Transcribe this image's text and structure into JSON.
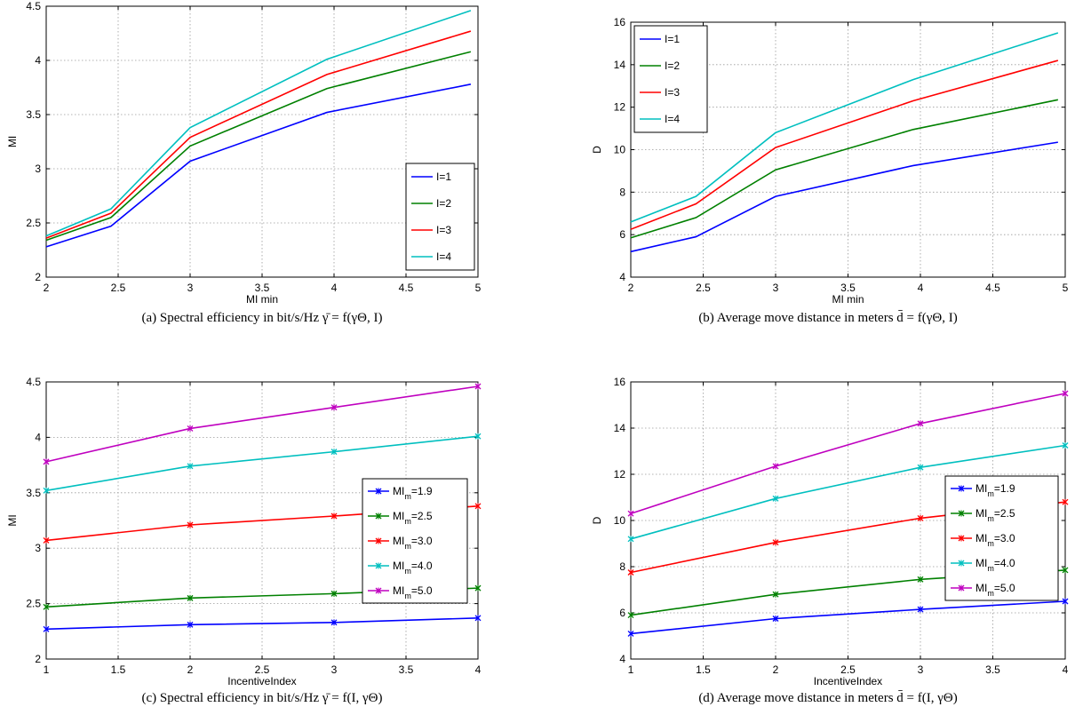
{
  "chart_data": [
    {
      "type": "line",
      "xlabel": "MI  min",
      "ylabel": "MI",
      "xlim": [
        2,
        5
      ],
      "ylim": [
        2,
        4.5
      ],
      "xticks": [
        "2",
        "2.5",
        "3",
        "3.5",
        "4",
        "4.5",
        "5"
      ],
      "yticks": [
        "2",
        "2.5",
        "3",
        "3.5",
        "4",
        "4.5"
      ],
      "grid": true,
      "legend_position": "center-right",
      "markers": false,
      "x": [
        2,
        2.45,
        3,
        3.95,
        4.95
      ],
      "series": [
        {
          "name": "I=1",
          "color": "#0000ff",
          "values": [
            2.28,
            2.47,
            3.07,
            3.52,
            3.78
          ]
        },
        {
          "name": "I=2",
          "color": "#008000",
          "values": [
            2.34,
            2.55,
            3.21,
            3.74,
            4.08
          ]
        },
        {
          "name": "I=3",
          "color": "#ff0000",
          "values": [
            2.36,
            2.59,
            3.29,
            3.87,
            4.27
          ]
        },
        {
          "name": "I=4",
          "color": "#00bfbf",
          "values": [
            2.38,
            2.63,
            3.38,
            4.01,
            4.46
          ]
        }
      ],
      "caption": "(a) Spectral efficiency in bit/s/Hz γ̄ = f(γΘ, I)"
    },
    {
      "type": "line",
      "xlabel": "MI  min",
      "ylabel": "D",
      "xlim": [
        2,
        5
      ],
      "ylim": [
        4,
        16
      ],
      "xticks": [
        "2",
        "2.5",
        "3",
        "3.5",
        "4",
        "4.5",
        "5"
      ],
      "yticks": [
        "4",
        "6",
        "8",
        "10",
        "12",
        "14",
        "16"
      ],
      "grid": true,
      "legend_position": "top-left",
      "markers": false,
      "x": [
        2,
        2.45,
        3,
        3.95,
        4.95
      ],
      "series": [
        {
          "name": "I=1",
          "color": "#0000ff",
          "values": [
            5.2,
            5.9,
            7.8,
            9.25,
            10.35
          ]
        },
        {
          "name": "I=2",
          "color": "#008000",
          "values": [
            5.85,
            6.8,
            9.05,
            10.95,
            12.35
          ]
        },
        {
          "name": "I=3",
          "color": "#ff0000",
          "values": [
            6.25,
            7.45,
            10.1,
            12.3,
            14.2
          ]
        },
        {
          "name": "I=4",
          "color": "#00bfbf",
          "values": [
            6.6,
            7.8,
            10.8,
            13.3,
            15.5
          ]
        }
      ],
      "caption": "(b) Average move distance in meters d̄ = f(γΘ, I)"
    },
    {
      "type": "line",
      "xlabel": "IncentiveIndex",
      "ylabel": "MI",
      "xlim": [
        1,
        4
      ],
      "ylim": [
        2,
        4.5
      ],
      "xticks": [
        "1",
        "1.5",
        "2",
        "2.5",
        "3",
        "3.5",
        "4"
      ],
      "yticks": [
        "2",
        "2.5",
        "3",
        "3.5",
        "4",
        "4.5"
      ],
      "grid": true,
      "legend_position": "center-right",
      "markers": true,
      "x": [
        1,
        2,
        3,
        4
      ],
      "series": [
        {
          "name": "1.9",
          "color": "#0000ff",
          "values": [
            2.27,
            2.31,
            2.33,
            2.37
          ]
        },
        {
          "name": "2.5",
          "color": "#008000",
          "values": [
            2.47,
            2.55,
            2.59,
            2.64
          ]
        },
        {
          "name": "3.0",
          "color": "#ff0000",
          "values": [
            3.07,
            3.21,
            3.29,
            3.38
          ]
        },
        {
          "name": "4.0",
          "color": "#00bfbf",
          "values": [
            3.52,
            3.74,
            3.87,
            4.01
          ]
        },
        {
          "name": "5.0",
          "color": "#bf00bf",
          "values": [
            3.78,
            4.08,
            4.27,
            4.46
          ]
        }
      ],
      "caption": "(c) Spectral efficiency in bit/s/Hz γ̄ = f(I, γΘ)"
    },
    {
      "type": "line",
      "xlabel": "IncentiveIndex",
      "ylabel": "D",
      "xlim": [
        1,
        4
      ],
      "ylim": [
        4,
        16
      ],
      "xticks": [
        "1",
        "1.5",
        "2",
        "2.5",
        "3",
        "3.5",
        "4"
      ],
      "yticks": [
        "4",
        "6",
        "8",
        "10",
        "12",
        "14",
        "16"
      ],
      "grid": true,
      "legend_position": "center-right",
      "markers": true,
      "x": [
        1,
        2,
        3,
        4
      ],
      "series": [
        {
          "name": "1.9",
          "color": "#0000ff",
          "values": [
            5.1,
            5.75,
            6.15,
            6.5
          ]
        },
        {
          "name": "2.5",
          "color": "#008000",
          "values": [
            5.9,
            6.8,
            7.45,
            7.85
          ]
        },
        {
          "name": "3.0",
          "color": "#ff0000",
          "values": [
            7.75,
            9.05,
            10.1,
            10.8
          ]
        },
        {
          "name": "4.0",
          "color": "#00bfbf",
          "values": [
            9.2,
            10.95,
            12.3,
            13.25
          ]
        },
        {
          "name": "5.0",
          "color": "#bf00bf",
          "values": [
            10.3,
            12.35,
            14.2,
            15.5
          ]
        }
      ],
      "caption": "(d) Average move distance in meters d̄ = f(I, γΘ)"
    }
  ]
}
